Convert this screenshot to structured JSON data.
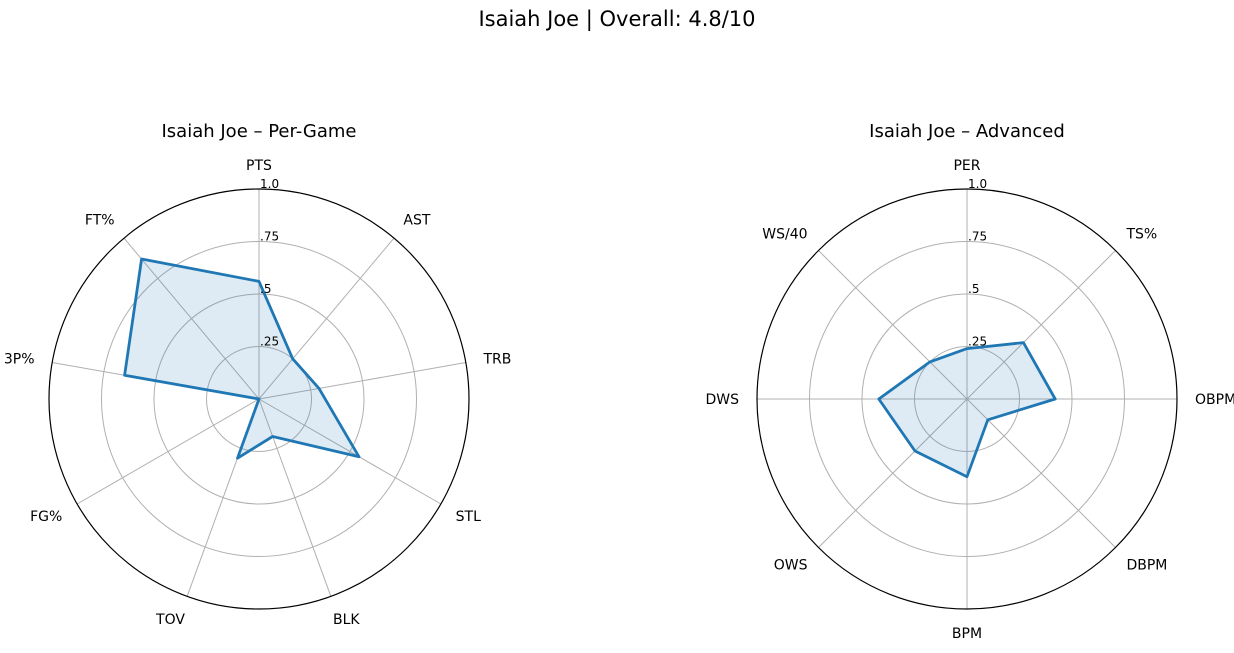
{
  "title": "Isaiah Joe | Overall: 4.8/10",
  "colors": {
    "line": "#1f77b4",
    "fill": "#1f77b4",
    "grid": "#b0b0b0",
    "frame": "#000000"
  },
  "chart_data": [
    {
      "type": "radar",
      "title": "Isaiah Joe – Per-Game",
      "categories": [
        "PTS",
        "AST",
        "TRB",
        "STL",
        "BLK",
        "TOV",
        "FG%",
        "3P%",
        "FT%"
      ],
      "values": [
        0.56,
        0.25,
        0.29,
        0.55,
        0.19,
        0.3,
        0.0,
        0.65,
        0.87
      ],
      "rlim": [
        0,
        1
      ],
      "ticks": [
        ".25",
        ".5",
        ".75",
        "1.0"
      ],
      "tick_values": [
        0.25,
        0.5,
        0.75,
        1.0
      ]
    },
    {
      "type": "radar",
      "title": "Isaiah Joe – Advanced",
      "categories": [
        "PER",
        "TS%",
        "OBPM",
        "DBPM",
        "BPM",
        "OWS",
        "DWS",
        "WS/40"
      ],
      "values": [
        0.24,
        0.38,
        0.42,
        0.14,
        0.37,
        0.35,
        0.42,
        0.25
      ],
      "rlim": [
        0,
        1
      ],
      "ticks": [
        ".25",
        ".5",
        ".75",
        "1.0"
      ],
      "tick_values": [
        0.25,
        0.5,
        0.75,
        1.0
      ]
    }
  ]
}
